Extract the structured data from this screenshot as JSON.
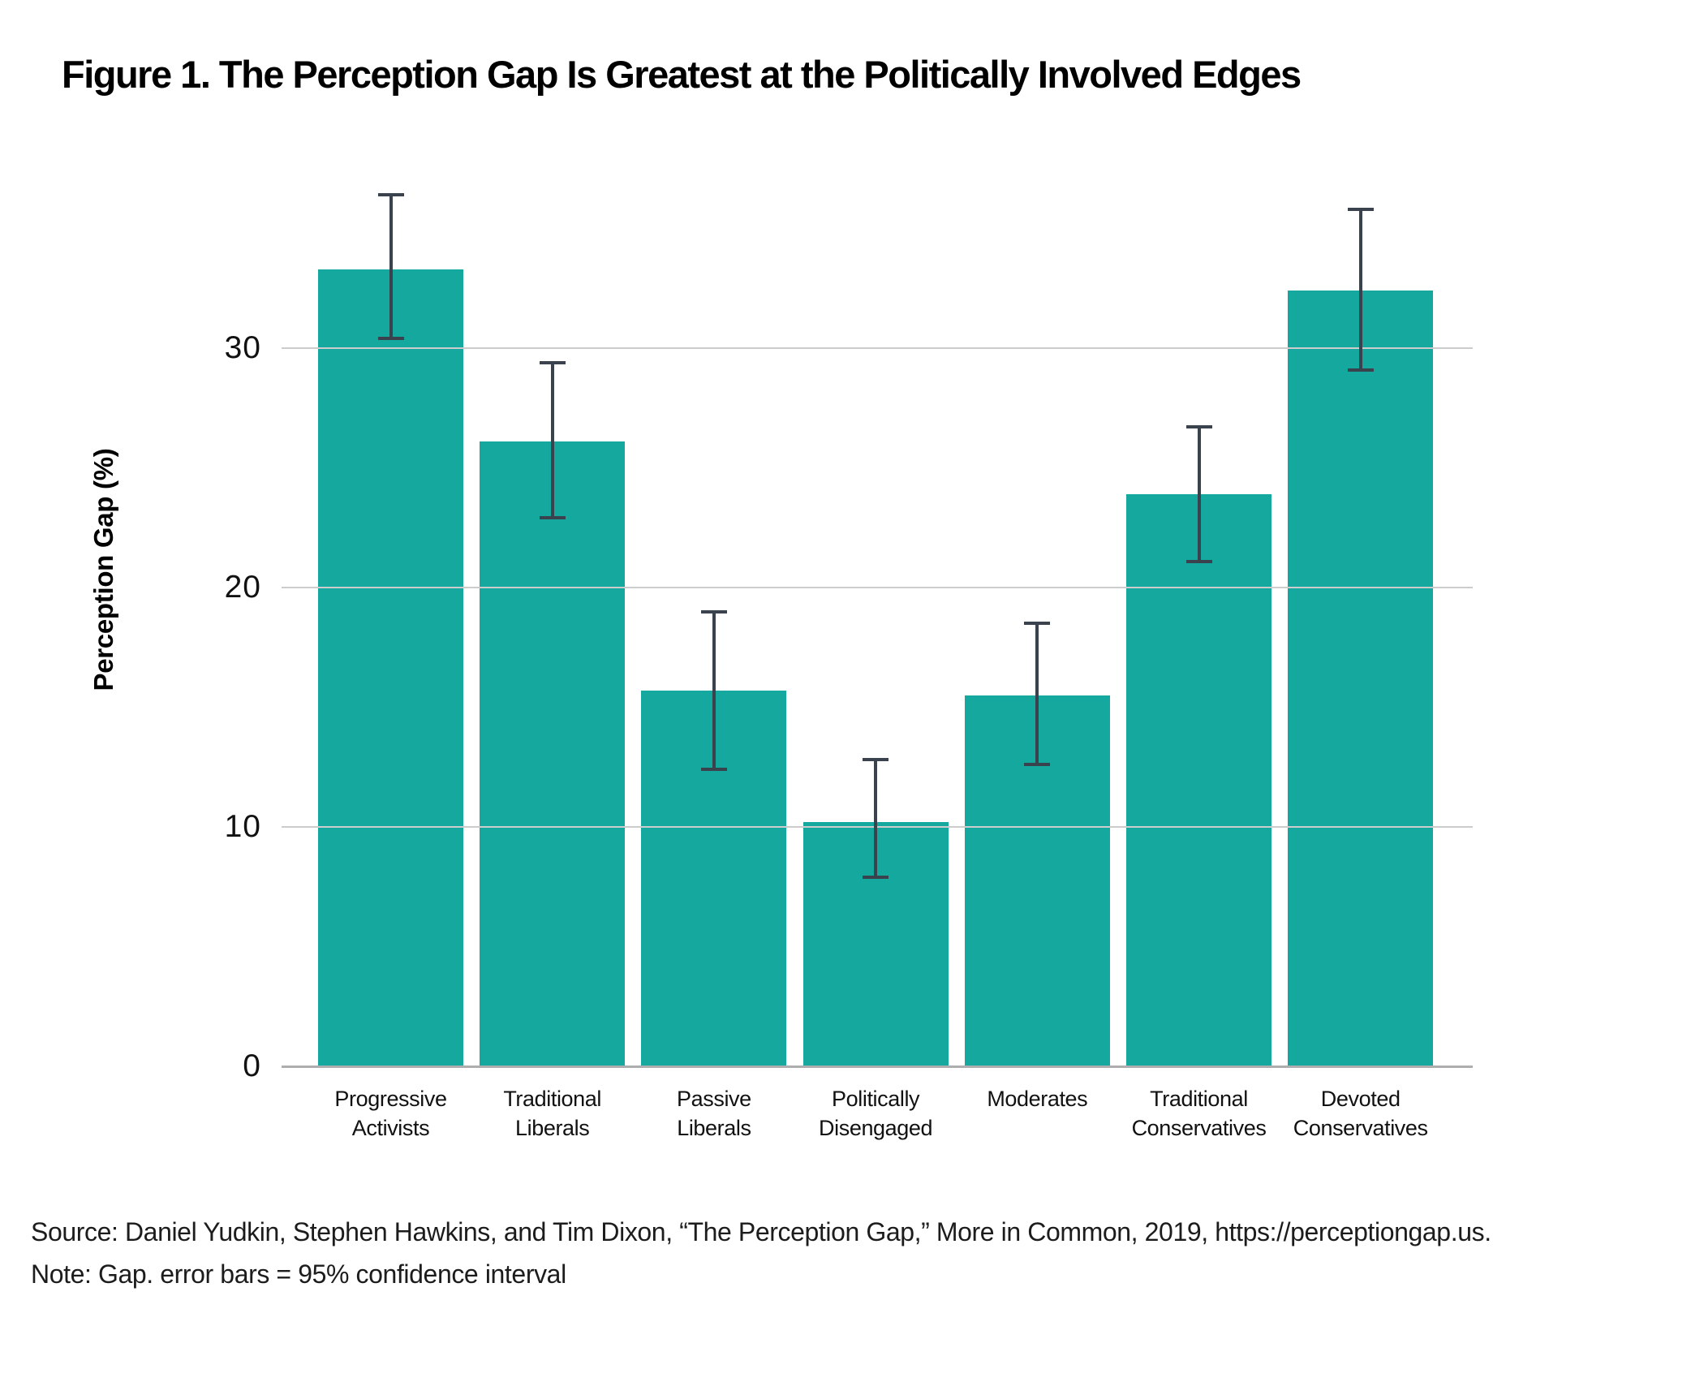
{
  "figure": {
    "title": "Figure 1. The Perception Gap Is Greatest at the Politically Involved Edges",
    "source": "Source: Daniel Yudkin, Stephen Hawkins, and Tim Dixon, “The Perception Gap,” More in Common, 2019, https://perceptiongap.us.",
    "note": "Note: Gap. error bars = 95% confidence interval"
  },
  "chart_data": {
    "type": "bar",
    "title": "Figure 1. The Perception Gap Is Greatest at the Politically Involved Edges",
    "xlabel": "",
    "ylabel": "Perception Gap (%)",
    "ylim": [
      0,
      37
    ],
    "yticks": [
      0,
      10,
      20,
      30
    ],
    "grid": "horizontal",
    "legend": "none",
    "bar_color": "#14A89E",
    "error_bar_color": "#3A434D",
    "error_bar_meaning": "95% confidence interval",
    "categories": [
      "Progressive Activists",
      "Traditional Liberals",
      "Passive Liberals",
      "Politically Disengaged",
      "Moderates",
      "Traditional Conservatives",
      "Devoted Conservatives"
    ],
    "category_label_lines": [
      [
        "Progressive",
        "Activists"
      ],
      [
        "Traditional",
        "Liberals"
      ],
      [
        "Passive",
        "Liberals"
      ],
      [
        "Politically",
        "Disengaged"
      ],
      [
        "Moderates"
      ],
      [
        "Traditional",
        "Conservatives"
      ],
      [
        "Devoted",
        "Conservatives"
      ]
    ],
    "values": [
      33.3,
      26.1,
      15.7,
      10.2,
      15.5,
      23.9,
      32.4
    ],
    "ci_low": [
      30.4,
      22.9,
      12.4,
      7.9,
      12.6,
      21.1,
      29.1
    ],
    "ci_high": [
      36.4,
      29.4,
      19.0,
      12.8,
      18.5,
      26.7,
      35.8
    ]
  }
}
